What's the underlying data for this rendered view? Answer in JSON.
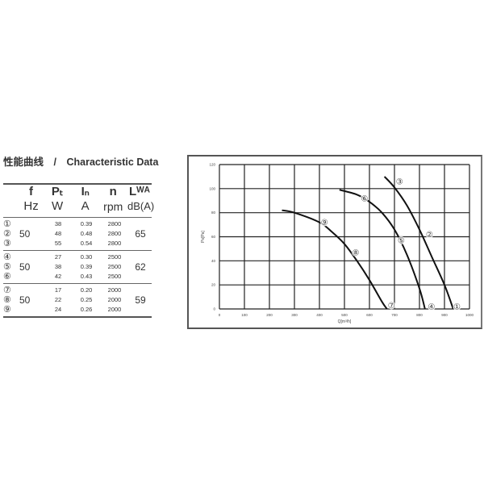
{
  "title": "性能曲线　/　Characteristic Data",
  "table": {
    "headers": [
      {
        "sym": "f",
        "unit": "Hz"
      },
      {
        "sym": "Pₜ",
        "unit": "W"
      },
      {
        "sym": "Iₙ",
        "unit": "A"
      },
      {
        "sym": "n",
        "unit": "rpm"
      },
      {
        "sym": "Lᵂᴬ",
        "unit": "dB(A)"
      }
    ],
    "groups": [
      {
        "ids": [
          "①",
          "②",
          "③"
        ],
        "f": "50",
        "P": [
          "38",
          "48",
          "55"
        ],
        "I": [
          "0.39",
          "0.48",
          "0.54"
        ],
        "n": [
          "2800",
          "2800",
          "2800"
        ],
        "L": "65"
      },
      {
        "ids": [
          "④",
          "⑤",
          "⑥"
        ],
        "f": "50",
        "P": [
          "27",
          "38",
          "42"
        ],
        "I": [
          "0.30",
          "0.39",
          "0.43"
        ],
        "n": [
          "2500",
          "2500",
          "2500"
        ],
        "L": "62"
      },
      {
        "ids": [
          "⑦",
          "⑧",
          "⑨"
        ],
        "f": "50",
        "P": [
          "17",
          "22",
          "24"
        ],
        "I": [
          "0.20",
          "0.25",
          "0.26"
        ],
        "n": [
          "2000",
          "2000",
          "2000"
        ],
        "L": "59"
      }
    ]
  },
  "chart_data": {
    "type": "line",
    "xlabel": "Q[m³/h]",
    "ylabel": "Ps[Pa]",
    "xlim": [
      0,
      1000
    ],
    "ylim": [
      0,
      120
    ],
    "xticks": [
      0,
      100,
      200,
      300,
      400,
      500,
      600,
      700,
      800,
      900,
      1000
    ],
    "yticks": [
      0,
      20,
      40,
      60,
      80,
      100,
      120
    ],
    "grid": true,
    "series": [
      {
        "points": [
          [
            660,
            110
          ],
          [
            700,
            101
          ],
          [
            750,
            86
          ],
          [
            800,
            66
          ],
          [
            850,
            43
          ],
          [
            900,
            20
          ],
          [
            935,
            0
          ]
        ],
        "labels": [
          {
            "text": "③",
            "x": 720,
            "y": 106
          },
          {
            "text": "②",
            "x": 840,
            "y": 62
          },
          {
            "text": "①",
            "x": 950,
            "y": 2
          }
        ]
      },
      {
        "points": [
          [
            480,
            99
          ],
          [
            550,
            95
          ],
          [
            600,
            89
          ],
          [
            650,
            80
          ],
          [
            700,
            66
          ],
          [
            750,
            45
          ],
          [
            800,
            17
          ],
          [
            822,
            0
          ]
        ],
        "labels": [
          {
            "text": "⑥",
            "x": 580,
            "y": 92
          },
          {
            "text": "⑤",
            "x": 727,
            "y": 57
          },
          {
            "text": "④",
            "x": 848,
            "y": 2
          }
        ]
      },
      {
        "points": [
          [
            250,
            82
          ],
          [
            300,
            80
          ],
          [
            400,
            72
          ],
          [
            450,
            64
          ],
          [
            500,
            54
          ],
          [
            550,
            40
          ],
          [
            600,
            24
          ],
          [
            650,
            6
          ],
          [
            670,
            0
          ]
        ],
        "labels": [
          {
            "text": "⑨",
            "x": 420,
            "y": 72
          },
          {
            "text": "⑧",
            "x": 545,
            "y": 47
          },
          {
            "text": "⑦",
            "x": 688,
            "y": 3
          }
        ]
      }
    ]
  }
}
